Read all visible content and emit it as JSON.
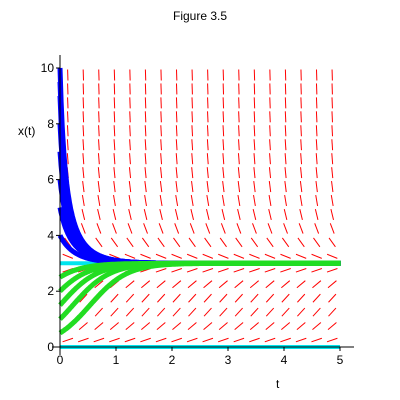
{
  "chart_data": {
    "type": "line",
    "title": "Figure 3.5",
    "xlabel": "t",
    "ylabel": "x(t)",
    "xlim": [
      0,
      5
    ],
    "ylim": [
      0,
      10
    ],
    "x_ticks": [
      0,
      1,
      2,
      3,
      4,
      5
    ],
    "y_ticks": [
      0,
      2,
      4,
      6,
      8,
      10
    ],
    "grid": false,
    "legend": "none",
    "equilibria": [
      {
        "x": 3,
        "color": "#00e5ee"
      },
      {
        "x": 0,
        "color": "#00e5ee"
      }
    ],
    "series": [
      {
        "color": "#0000ff",
        "initial_values": [
          10,
          9.5,
          9,
          8,
          7,
          6,
          5,
          4
        ]
      },
      {
        "color": "#22dd22",
        "initial_values": [
          2.5,
          2,
          1.5,
          1,
          0.5
        ]
      }
    ],
    "direction_field": {
      "color": "#ff0000",
      "x_range": [
        0,
        5
      ],
      "y_range": [
        0,
        10
      ],
      "cols": 18,
      "rows": 20
    }
  }
}
